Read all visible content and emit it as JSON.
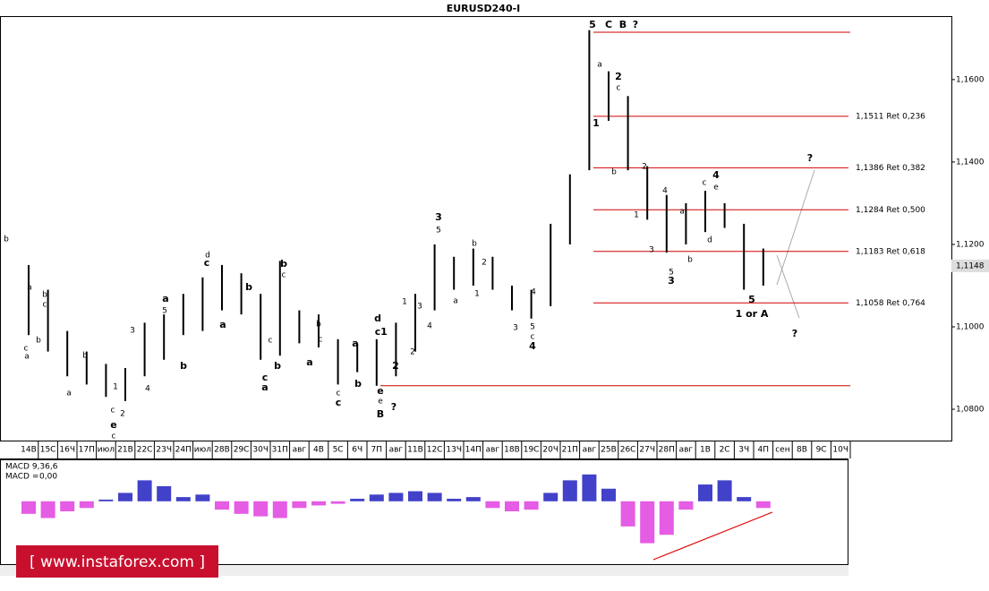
{
  "chart_data": {
    "type": "ohlc",
    "title": "EURUSD240-I",
    "categories": [
      "14В",
      "15С",
      "16Ч",
      "17П",
      "июл",
      "21В",
      "22С",
      "23Ч",
      "24П",
      "июл",
      "28В",
      "29С",
      "30Ч",
      "31П",
      "авг",
      "4В",
      "5С",
      "6Ч",
      "7П",
      "авг",
      "11В",
      "12С",
      "13Ч",
      "14П",
      "авг",
      "18В",
      "19С",
      "20Ч",
      "21П",
      "авг",
      "25В",
      "26С",
      "27Ч",
      "28П",
      "авг",
      "1В",
      "2С",
      "3Ч",
      "4П",
      "сен",
      "8В",
      "9С",
      "10Ч"
    ],
    "high": [
      1.115,
      1.109,
      1.099,
      1.094,
      1.091,
      1.09,
      1.101,
      1.103,
      1.108,
      1.112,
      1.115,
      1.113,
      1.108,
      1.116,
      1.104,
      1.103,
      1.097,
      1.096,
      1.097,
      1.101,
      1.108,
      1.12,
      1.117,
      1.119,
      1.117,
      1.11,
      1.109,
      1.125,
      1.137,
      1.172,
      1.162,
      1.156,
      1.139,
      1.132,
      1.13,
      1.133,
      1.13,
      1.125,
      1.119,
      null,
      null,
      null,
      null
    ],
    "low": [
      1.098,
      1.094,
      1.088,
      1.086,
      1.083,
      1.082,
      1.088,
      1.092,
      1.098,
      1.099,
      1.104,
      1.103,
      1.092,
      1.093,
      1.096,
      1.095,
      1.086,
      1.089,
      1.0857,
      1.088,
      1.094,
      1.104,
      1.109,
      1.11,
      1.109,
      1.104,
      1.102,
      1.105,
      1.12,
      1.138,
      1.15,
      1.138,
      1.126,
      1.118,
      1.12,
      1.123,
      1.124,
      1.109,
      1.11,
      null,
      null,
      null,
      null
    ],
    "color": "#000000",
    "ylim": [
      1.0724,
      1.1754
    ],
    "yticks": [
      {
        "value": 1.16,
        "label": "1,1600"
      },
      {
        "value": 1.14,
        "label": "1,1400"
      },
      {
        "value": 1.12,
        "label": "1,1200"
      },
      {
        "value": 1.1,
        "label": "1,1000"
      },
      {
        "value": 1.08,
        "label": "1,0800"
      }
    ],
    "last_price": {
      "value": 1.1148,
      "label": "1,1148"
    },
    "levels": [
      {
        "value": 1.1511,
        "label": "1,1511 Ret 0,236"
      },
      {
        "value": 1.1386,
        "label": "1,1386 Ret 0,382"
      },
      {
        "value": 1.1284,
        "label": "1,1284 Ret 0,500"
      },
      {
        "value": 1.1183,
        "label": "1,1183 Ret 0,618"
      },
      {
        "value": 1.1058,
        "label": "1,1058 Ret 0,764"
      }
    ],
    "lines": [
      1.1715,
      1.0857
    ],
    "level_color": "#d00000",
    "annotations": [
      {
        "text": "5",
        "color": "#1a1ad0"
      },
      {
        "text": "C",
        "color": "#1a1ad0"
      },
      {
        "text": "B",
        "color": "#1a9ad0"
      },
      {
        "text": "?",
        "color": "#d00000"
      },
      {
        "text": "a",
        "color": "#000000"
      },
      {
        "text": "2",
        "color": "#1a1ad0"
      },
      {
        "text": "c",
        "color": "#000000"
      },
      {
        "text": "1",
        "color": "#1a1ad0"
      },
      {
        "text": "b",
        "color": "#000000"
      },
      {
        "text": "2",
        "color": "#000000"
      },
      {
        "text": "4",
        "color": "#000000"
      },
      {
        "text": "1",
        "color": "#000000"
      },
      {
        "text": "a",
        "color": "#000000"
      },
      {
        "text": "3",
        "color": "#000000"
      },
      {
        "text": "5",
        "color": "#000000"
      },
      {
        "text": "3",
        "color": "#1a1ad0"
      },
      {
        "text": "b",
        "color": "#000000"
      },
      {
        "text": "c",
        "color": "#000000"
      },
      {
        "text": "4",
        "color": "#1a1ad0"
      },
      {
        "text": "e",
        "color": "#000000"
      },
      {
        "text": "d",
        "color": "#000000"
      },
      {
        "text": "5",
        "color": "#1a1ad0"
      },
      {
        "text": "1 or A",
        "color": "#000000"
      },
      {
        "text": "?",
        "color": "#000000"
      },
      {
        "text": "?",
        "color": "#000000"
      },
      {
        "text": "b",
        "color": "#000000"
      },
      {
        "text": "a",
        "color": "#000000"
      },
      {
        "text": "b",
        "color": "#000000"
      },
      {
        "text": "c",
        "color": "#000000"
      },
      {
        "text": "c",
        "color": "#000000"
      },
      {
        "text": "a",
        "color": "#000000"
      },
      {
        "text": "b",
        "color": "#000000"
      },
      {
        "text": "b",
        "color": "#000000"
      },
      {
        "text": "a",
        "color": "#000000"
      },
      {
        "text": "1",
        "color": "#000000"
      },
      {
        "text": "2",
        "color": "#000000"
      },
      {
        "text": "c",
        "color": "#000000"
      },
      {
        "text": "e",
        "color": "#1a1ad0"
      },
      {
        "text": "c",
        "color": "#1a9ad0"
      },
      {
        "text": "3",
        "color": "#000000"
      },
      {
        "text": "4",
        "color": "#000000"
      },
      {
        "text": "a",
        "color": "#1a1ad0"
      },
      {
        "text": "5",
        "color": "#000000"
      },
      {
        "text": "b",
        "color": "#1a1ad0"
      },
      {
        "text": "d",
        "color": "#1a9ad0"
      },
      {
        "text": "c",
        "color": "#1a1ad0"
      },
      {
        "text": "b",
        "color": "#1a1ad0"
      },
      {
        "text": "a",
        "color": "#1a1ad0"
      },
      {
        "text": "b",
        "color": "#1a1ad0"
      },
      {
        "text": "c",
        "color": "#000000"
      },
      {
        "text": "c",
        "color": "#000000"
      },
      {
        "text": "b",
        "color": "#1a1ad0"
      },
      {
        "text": "c",
        "color": "#1a1ad0"
      },
      {
        "text": "a",
        "color": "#1a1ad0"
      },
      {
        "text": "a",
        "color": "#1a1ad0"
      },
      {
        "text": "b",
        "color": "#000000"
      },
      {
        "text": "c",
        "color": "#000000"
      },
      {
        "text": "c",
        "color": "#000000"
      },
      {
        "text": "c",
        "color": "#1a1ad0"
      },
      {
        "text": "b",
        "color": "#1a1ad0"
      },
      {
        "text": "a",
        "color": "#1a1ad0"
      },
      {
        "text": "d",
        "color": "#1a1ad0"
      },
      {
        "text": "c",
        "color": "#1a1ad0"
      },
      {
        "text": "1",
        "color": "#1a1ad0"
      },
      {
        "text": "e",
        "color": "#1a1ad0"
      },
      {
        "text": "e",
        "color": "#1a9ad0"
      },
      {
        "text": "B",
        "color": "#1a1ad0"
      },
      {
        "text": "?",
        "color": "#d00000"
      },
      {
        "text": "1",
        "color": "#000000"
      },
      {
        "text": "2",
        "color": "#000000"
      },
      {
        "text": "2",
        "color": "#1a1ad0"
      },
      {
        "text": "3",
        "color": "#000000"
      },
      {
        "text": "4",
        "color": "#000000"
      },
      {
        "text": "3",
        "color": "#1a1ad0"
      },
      {
        "text": "5",
        "color": "#000000"
      },
      {
        "text": "b",
        "color": "#000000"
      },
      {
        "text": "2",
        "color": "#000000"
      },
      {
        "text": "1",
        "color": "#000000"
      },
      {
        "text": "a",
        "color": "#000000"
      },
      {
        "text": "3",
        "color": "#000000"
      },
      {
        "text": "5",
        "color": "#000000"
      },
      {
        "text": "c",
        "color": "#000000"
      },
      {
        "text": "4",
        "color": "#1a1ad0"
      },
      {
        "text": "4",
        "color": "#000000"
      }
    ],
    "macd": {
      "label": "MACD 9,36,6",
      "value_label": "MACD =",
      "value": {
        "value": 0,
        "label": "0,00"
      },
      "value_color": "#e000e0",
      "values": [
        -0.0015,
        -0.002,
        -0.0012,
        -0.0008,
        0.0002,
        0.001,
        0.0025,
        0.0018,
        0.0005,
        0.0008,
        -0.001,
        -0.0015,
        -0.0018,
        -0.002,
        -0.0008,
        -0.0005,
        -0.0003,
        0.0003,
        0.0008,
        0.001,
        0.0012,
        0.001,
        0.0003,
        0.0005,
        -0.0008,
        -0.0012,
        -0.001,
        0.001,
        0.0025,
        0.0032,
        0.0015,
        -0.003,
        -0.005,
        -0.004,
        -0.001,
        0.002,
        0.0025,
        0.0005,
        -0.0008,
        null,
        null,
        null,
        null
      ],
      "ylim": [
        -0.0075,
        0.005
      ],
      "positive_color": "#2020c0",
      "negative_color": "#e040e0"
    },
    "watermark": "[ www.instaforex.com ]"
  }
}
